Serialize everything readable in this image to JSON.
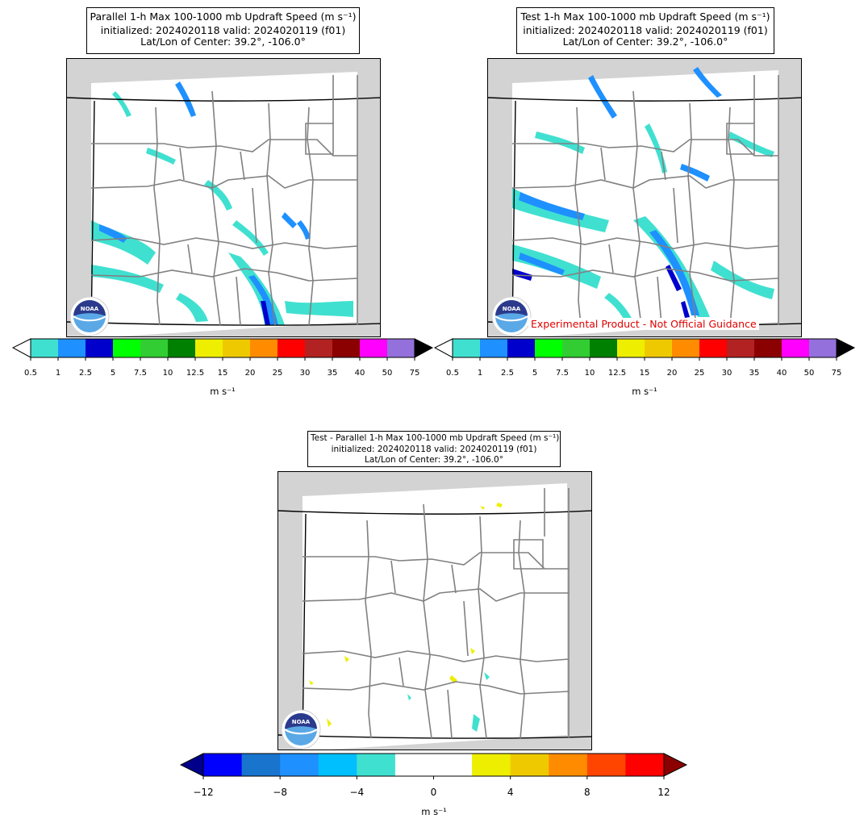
{
  "panels": {
    "parallel": {
      "title_line1": "Parallel 1-h Max 100-1000 mb Updraft Speed (m s⁻¹)",
      "title_line2": "initialized: 2024020118 valid: 2024020119 (f01)",
      "title_line3": "Lat/Lon of Center: 39.2°, -106.0°"
    },
    "test": {
      "title_line1": "Test 1-h Max 100-1000 mb Updraft Speed (m s⁻¹)",
      "title_line2": "initialized: 2024020118 valid: 2024020119 (f01)",
      "title_line3": "Lat/Lon of Center: 39.2°, -106.0°",
      "disclaimer": "Experimental Product - Not Official Guidance"
    },
    "diff": {
      "title_line1": "Test - Parallel 1-h Max 100-1000 mb Updraft Speed (m s⁻¹)",
      "title_line2": "initialized: 2024020118 valid: 2024020119 (f01)",
      "title_line3": "Lat/Lon of Center: 39.2°, -106.0°"
    }
  },
  "logo_text": "NOAA",
  "colorbar_speed": {
    "ticks": [
      "0.5",
      "1",
      "2.5",
      "5",
      "7.5",
      "10",
      "12.5",
      "15",
      "20",
      "25",
      "30",
      "35",
      "40",
      "50",
      "75"
    ],
    "colors": [
      "#40e0d0",
      "#1e90ff",
      "#0000cd",
      "#00ff00",
      "#32cd32",
      "#008000",
      "#eeee00",
      "#eec900",
      "#ff8c00",
      "#ff0000",
      "#b22222",
      "#8b0000",
      "#ff00ff",
      "#9370db"
    ],
    "over_color": "#000000",
    "units": "m s⁻¹"
  },
  "colorbar_diff": {
    "ticks": [
      "−12",
      "−8",
      "−4",
      "0",
      "4",
      "8",
      "12"
    ],
    "colors": [
      "#0000ff",
      "#1874cd",
      "#1e90ff",
      "#00bfff",
      "#40e0d0",
      "#ffffff",
      "#ffffff",
      "#eeee00",
      "#eec900",
      "#ff8c00",
      "#ff4500",
      "#ff0000"
    ],
    "under_color": "#00008b",
    "over_color": "#8b0000",
    "units": "m s⁻¹"
  }
}
